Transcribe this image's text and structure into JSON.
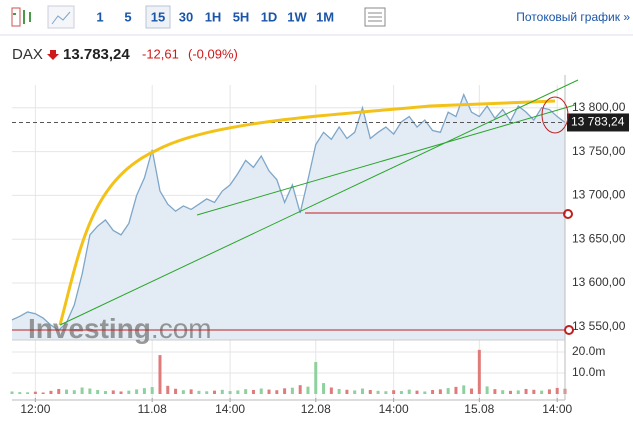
{
  "toolbar": {
    "intervals": [
      "1",
      "5",
      "15",
      "30",
      "1H",
      "5H",
      "1D",
      "1W",
      "1M"
    ],
    "stream_link": "Потоковый график »"
  },
  "quote": {
    "symbol": "DAX",
    "price": "13.783,24",
    "change": "-12,61",
    "change_percent": "(-0,09%)"
  },
  "watermark": {
    "brand": "Investing",
    "suffix": ".com"
  },
  "chart_data": {
    "type": "area",
    "color": "#7ea6c9",
    "fill": "#e3ecf4",
    "grid": true,
    "categories": [
      null,
      null,
      null,
      "12:00",
      null,
      null,
      null,
      null,
      null,
      null,
      null,
      null,
      null,
      null,
      null,
      null,
      null,
      null,
      "11.08",
      null,
      null,
      null,
      null,
      null,
      null,
      null,
      null,
      null,
      "14:00",
      null,
      null,
      null,
      null,
      null,
      null,
      null,
      null,
      null,
      null,
      "12.08",
      null,
      null,
      null,
      null,
      null,
      null,
      null,
      null,
      null,
      "14:00",
      null,
      null,
      null,
      null,
      null,
      null,
      null,
      null,
      null,
      null,
      "15.08",
      null,
      null,
      null,
      null,
      null,
      null,
      null,
      null,
      null,
      "14:00",
      null
    ],
    "values": [
      13558,
      13562,
      13567,
      13565,
      13560,
      13552,
      13546,
      13555,
      13575,
      13610,
      13655,
      13665,
      13672,
      13660,
      13655,
      13668,
      13700,
      13720,
      13752,
      13705,
      13690,
      13682,
      13688,
      13684,
      13690,
      13696,
      13692,
      13705,
      13712,
      13725,
      13740,
      13732,
      13745,
      13728,
      13718,
      13692,
      13712,
      13680,
      13718,
      13758,
      13772,
      13764,
      13778,
      13765,
      13772,
      13800,
      13765,
      13772,
      13778,
      13770,
      13784,
      13790,
      13778,
      13786,
      13774,
      13772,
      13795,
      13790,
      13815,
      13795,
      13790,
      13802,
      13788,
      13798,
      13785,
      13802,
      13795,
      13786,
      13800,
      13798,
      13790,
      13783.24
    ],
    "ylim": [
      13535,
      13826
    ],
    "yticks": [
      {
        "value": 13550,
        "label": "13 550,00"
      },
      {
        "value": 13600,
        "label": "13 600,00"
      },
      {
        "value": 13650,
        "label": "13 650,00"
      },
      {
        "value": 13700,
        "label": "13 700,00"
      },
      {
        "value": 13750,
        "label": "13 750,00"
      },
      {
        "value": 13800,
        "label": "13 800,00"
      }
    ],
    "last_price_label": "13 783,24",
    "volume": {
      "up_color": "#8fd19e",
      "down_color": "#e07b7b",
      "ylim": [
        0,
        23300000
      ],
      "yticks": [
        {
          "value": 10000000,
          "label": "10.0m"
        },
        {
          "value": 20000000,
          "label": "20.0m"
        }
      ],
      "values": [
        1200000,
        900000,
        800000,
        1100000,
        700000,
        1500000,
        2400000,
        2100000,
        1800000,
        3100000,
        2600000,
        1900000,
        1400000,
        1700000,
        1200000,
        1600000,
        2200000,
        2800000,
        3300000,
        18500000,
        3900000,
        2500000,
        1800000,
        2200000,
        1500000,
        1300000,
        1600000,
        2000000,
        1400000,
        1700000,
        2300000,
        1900000,
        2600000,
        2100000,
        1800000,
        2700000,
        3000000,
        4200000,
        3500000,
        15200000,
        5200000,
        3100000,
        2400000,
        2000000,
        1700000,
        2600000,
        1900000,
        1500000,
        1300000,
        1800000,
        1400000,
        2100000,
        1600000,
        1200000,
        1900000,
        2200000,
        2800000,
        3400000,
        4100000,
        2600000,
        21000000,
        3600000,
        2300000,
        1800000,
        1500000,
        1700000,
        2400000,
        2000000,
        1600000,
        2200000,
        2900000,
        2500000
      ]
    }
  }
}
